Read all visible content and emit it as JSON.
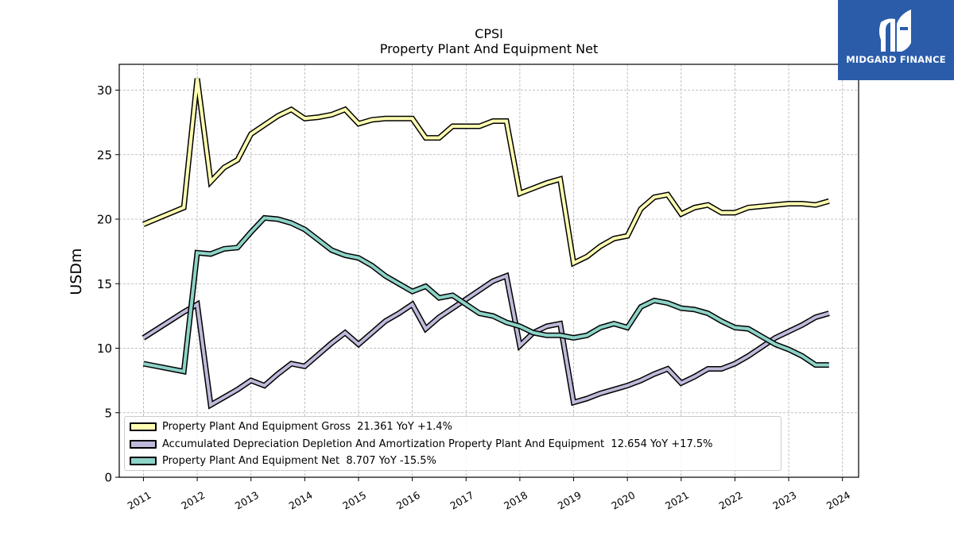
{
  "brand": {
    "name": "MIDGARD FINANCE",
    "bg_color": "#2a5caa"
  },
  "chart_data": {
    "type": "line",
    "title": "CPSI",
    "subtitle": "Property Plant And Equipment Net",
    "ylabel": "USDm",
    "xlabel": "",
    "ylim": [
      0,
      32
    ],
    "yticks": [
      0,
      5,
      10,
      15,
      20,
      25,
      30
    ],
    "xlim": [
      2010.55,
      2024.3
    ],
    "xticks": [
      "2011",
      "2012",
      "2013",
      "2014",
      "2015",
      "2016",
      "2017",
      "2018",
      "2019",
      "2020",
      "2021",
      "2022",
      "2023",
      "2024"
    ],
    "grid": true,
    "legend_position": "lower-left",
    "x": [
      2011.0,
      2011.75,
      2012.0,
      2012.25,
      2012.5,
      2012.75,
      2013.0,
      2013.25,
      2013.5,
      2013.75,
      2014.0,
      2014.25,
      2014.5,
      2014.75,
      2015.0,
      2015.25,
      2015.5,
      2015.75,
      2016.0,
      2016.25,
      2016.5,
      2016.75,
      2017.0,
      2017.25,
      2017.5,
      2017.75,
      2018.0,
      2018.25,
      2018.5,
      2018.75,
      2019.0,
      2019.25,
      2019.5,
      2019.75,
      2020.0,
      2020.25,
      2020.5,
      2020.75,
      2021.0,
      2021.25,
      2021.5,
      2021.75,
      2022.0,
      2022.25,
      2022.5,
      2022.75,
      2023.0,
      2023.25,
      2023.5,
      2023.75
    ],
    "series": [
      {
        "name": "Property Plant And Equipment Gross",
        "legend_label": "Property Plant And Equipment Gross  21.361 YoY +1.4%",
        "color": "#ffffb3",
        "values": [
          19.6,
          20.9,
          30.9,
          22.9,
          24.0,
          24.6,
          26.6,
          27.3,
          28.0,
          28.5,
          27.8,
          27.9,
          28.1,
          28.5,
          27.4,
          27.7,
          27.8,
          27.8,
          27.8,
          26.3,
          26.3,
          27.2,
          27.2,
          27.2,
          27.6,
          27.6,
          22.0,
          22.4,
          22.8,
          23.1,
          16.6,
          17.1,
          17.9,
          18.5,
          18.7,
          20.8,
          21.7,
          21.9,
          20.4,
          20.9,
          21.1,
          20.5,
          20.5,
          20.9,
          21.0,
          21.1,
          21.2,
          21.2,
          21.1,
          21.4
        ]
      },
      {
        "name": "Accumulated Depreciation Depletion And Amortization Property Plant And Equipment",
        "legend_label": "Accumulated Depreciation Depletion And Amortization Property Plant And Equipment  12.654 YoY +17.5%",
        "color": "#bebada",
        "values": [
          10.8,
          12.8,
          13.4,
          5.6,
          6.2,
          6.8,
          7.5,
          7.1,
          8.0,
          8.8,
          8.6,
          9.5,
          10.4,
          11.2,
          10.3,
          11.2,
          12.1,
          12.7,
          13.4,
          11.5,
          12.4,
          13.1,
          13.8,
          14.5,
          15.2,
          15.6,
          10.2,
          11.2,
          11.7,
          11.9,
          5.8,
          6.1,
          6.5,
          6.8,
          7.1,
          7.5,
          8.0,
          8.4,
          7.3,
          7.8,
          8.4,
          8.4,
          8.8,
          9.4,
          10.1,
          10.8,
          11.3,
          11.8,
          12.4,
          12.7
        ]
      },
      {
        "name": "Property Plant And Equipment Net",
        "legend_label": "Property Plant And Equipment Net  8.707 YoY -15.5%",
        "color": "#8dd3c7",
        "values": [
          8.8,
          8.2,
          17.4,
          17.3,
          17.7,
          17.8,
          19.0,
          20.1,
          20.0,
          19.7,
          19.2,
          18.4,
          17.6,
          17.2,
          17.0,
          16.4,
          15.6,
          15.0,
          14.4,
          14.8,
          13.9,
          14.1,
          13.4,
          12.7,
          12.5,
          12.0,
          11.7,
          11.2,
          11.0,
          11.0,
          10.8,
          11.0,
          11.6,
          11.9,
          11.6,
          13.2,
          13.7,
          13.5,
          13.1,
          13.0,
          12.7,
          12.1,
          11.6,
          11.5,
          10.9,
          10.3,
          9.9,
          9.4,
          8.7,
          8.7
        ]
      }
    ]
  }
}
